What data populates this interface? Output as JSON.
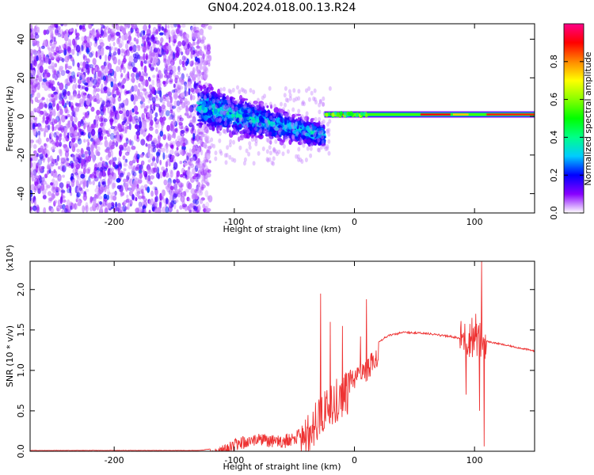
{
  "title": "GN04.2024.018.00.13.R24",
  "chart_data": [
    {
      "type": "heatmap",
      "name": "spectrogram",
      "xlabel": "Height of straight line (km)",
      "ylabel": "Frequency (Hz)",
      "xlim": [
        -270,
        150
      ],
      "ylim": [
        -50,
        48
      ],
      "xticks": [
        -200,
        -100,
        0,
        100
      ],
      "yticks": [
        -40,
        -20,
        0,
        20,
        40
      ],
      "colorbar": {
        "label": "Normalized spectral amplitude",
        "range": [
          0,
          1
        ],
        "ticks": [
          0.0,
          0.2,
          0.4,
          0.6,
          0.8
        ]
      },
      "regions": [
        {
          "x_range": [
            -270,
            -130
          ],
          "freq_range": [
            -50,
            48
          ],
          "amplitude": 0.1,
          "pattern": "broadband scattered noise"
        },
        {
          "x_range": [
            -130,
            -25
          ],
          "freq_center": [
            5,
            -10
          ],
          "freq_halfwidth": [
            10,
            5
          ],
          "amplitude": 0.25,
          "pattern": "noisy converging band"
        },
        {
          "x_range": [
            -25,
            150
          ],
          "freq_center": [
            1,
            1
          ],
          "freq_halfwidth": [
            1.5,
            1.5
          ],
          "amplitude": 0.9,
          "pattern": "narrow carrier line"
        }
      ]
    },
    {
      "type": "line",
      "name": "snr",
      "xlabel": "Height of straight line (km)",
      "ylabel": "SNR (10 * v/v)",
      "y_multiplier": "(x10⁴)",
      "xlim": [
        -270,
        150
      ],
      "ylim": [
        0,
        2.35
      ],
      "xticks": [
        -200,
        -100,
        0,
        100
      ],
      "yticks": [
        0.0,
        0.5,
        1.0,
        1.5,
        2.0
      ],
      "color": "#ee3333",
      "points": [
        [
          -270,
          0.01
        ],
        [
          -200,
          0.01
        ],
        [
          -130,
          0.01
        ],
        [
          -118,
          0.03
        ],
        [
          -110,
          0.08
        ],
        [
          -100,
          0.15
        ],
        [
          -90,
          0.2
        ],
        [
          -80,
          0.22
        ],
        [
          -70,
          0.2
        ],
        [
          -60,
          0.2
        ],
        [
          -50,
          0.25
        ],
        [
          -45,
          0.3
        ],
        [
          -40,
          0.45
        ],
        [
          -35,
          0.55
        ],
        [
          -30,
          0.7
        ],
        [
          -25,
          0.8
        ],
        [
          -20,
          0.85
        ],
        [
          -15,
          0.9
        ],
        [
          -10,
          0.95
        ],
        [
          -5,
          1.0
        ],
        [
          0,
          1.05
        ],
        [
          5,
          1.1
        ],
        [
          10,
          1.15
        ],
        [
          15,
          1.25
        ],
        [
          20,
          1.35
        ],
        [
          25,
          1.42
        ],
        [
          30,
          1.45
        ],
        [
          40,
          1.48
        ],
        [
          50,
          1.48
        ],
        [
          60,
          1.47
        ],
        [
          70,
          1.45
        ],
        [
          80,
          1.43
        ],
        [
          88,
          1.41
        ],
        [
          95,
          1.38
        ],
        [
          100,
          1.38
        ],
        [
          105,
          1.37
        ],
        [
          110,
          1.36
        ],
        [
          120,
          1.33
        ],
        [
          130,
          1.3
        ],
        [
          140,
          1.27
        ],
        [
          150,
          1.24
        ]
      ],
      "spikes": [
        [
          -28,
          1.95
        ],
        [
          -20,
          1.6
        ],
        [
          -10,
          1.55
        ],
        [
          5,
          1.42
        ],
        [
          10,
          1.88
        ],
        [
          93,
          0.7
        ],
        [
          98,
          1.65
        ],
        [
          101,
          1.7
        ],
        [
          104,
          0.5
        ],
        [
          106,
          2.35
        ],
        [
          108,
          0.06
        ]
      ]
    }
  ]
}
